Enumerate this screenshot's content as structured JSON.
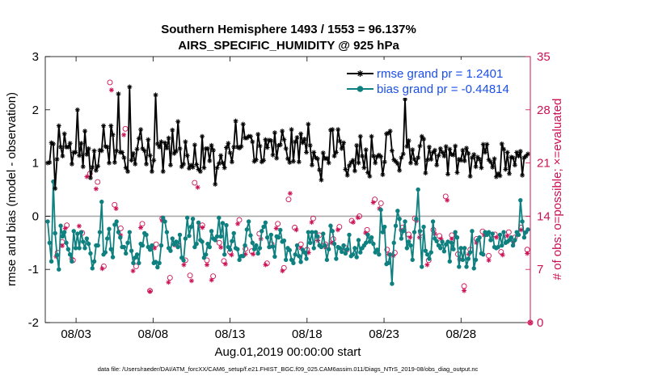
{
  "chart_data": {
    "type": "line",
    "title_line1": "Southern Hemisphere 1493 / 1553 = 96.137%",
    "title_line2": "AIRS_SPECIFIC_HUMIDITY @ 925 hPa",
    "xlabel": "Aug.01,2019 00:00:00 start",
    "ylabel_left": "rmse and bias (model - observation)",
    "ylabel_right": "# of obs: o=possible; ×=evaluated",
    "footnote": "data file: /Users/raeder/DAI/ATM_forcXX/CAM6_setup/f.e21.FHIST_BGC.f09_025.CAM6assim.011/Diags_NTrS_2019-08/obs_diag_output.nc",
    "x_range_days": [
      1.0,
      32.5
    ],
    "x_ticks": [
      {
        "day": 3,
        "label": "08/03"
      },
      {
        "day": 8,
        "label": "08/08"
      },
      {
        "day": 13,
        "label": "08/13"
      },
      {
        "day": 18,
        "label": "08/18"
      },
      {
        "day": 23,
        "label": "08/23"
      },
      {
        "day": 28,
        "label": "08/28"
      }
    ],
    "ylim_left": [
      -2,
      3
    ],
    "yticks_left": [
      "3",
      "2",
      "1",
      "0",
      "-1",
      "-2"
    ],
    "ylim_right": [
      0,
      35
    ],
    "yticks_right": [
      "35",
      "28",
      "21",
      "14",
      "7",
      "0"
    ],
    "colors": {
      "rmse": "#000000",
      "bias": "#0f8080",
      "obs": "#cc1155",
      "right_axis": "#cc1155",
      "legend_text": "#1b4fe8",
      "zero_line": "#aaaaaa"
    },
    "series": [
      {
        "name": "rmse",
        "legend": "rmse grand pr = 1.2401",
        "values": [
          1.0,
          1.01,
          1.38,
          1.36,
          0.52,
          1.07,
          1.7,
          1.3,
          1.13,
          1.55,
          1.3,
          1.3,
          1.37,
          0.98,
          1.2,
          1.2,
          2.0,
          1.14,
          1.37,
          0.93,
          1.6,
          1.16,
          1.27,
          0.72,
          0.92,
          1.23,
          0.86,
          0.94,
          1.24,
          1.23,
          1.7,
          1.31,
          1.3,
          1.0,
          1.7,
          1.53,
          1.01,
          1.23,
          2.3,
          1.2,
          1.2,
          1.1,
          0.91,
          0.84,
          2.43,
          1.05,
          1.18,
          0.98,
          1.26,
          1.46,
          1.63,
          1.27,
          1.23,
          0.98,
          1.44,
          1.14,
          0.84,
          1.05,
          2.28,
          1.36,
          1.3,
          1.4,
          0.84,
          1.38,
          1.28,
          1.47,
          0.96,
          1.62,
          1.18,
          1.22,
          1.78,
          1.27,
          0.93,
          0.98,
          1.4,
          1.14,
          0.9,
          0.96,
          0.92,
          1.34,
          0.97,
          0.88,
          0.84,
          1.5,
          0.91,
          1.27,
          1.27,
          1.04,
          1.33,
          1.24,
          0.6,
          0.91,
          0.99,
          1.14,
          1.0,
          0.91,
          1.29,
          1.37,
          1.19,
          1.02,
          1.3,
          1.79,
          1.3,
          1.28,
          1.31,
          1.73,
          1.47,
          1.47,
          1.5,
          1.5,
          1.4,
          1.03,
          1.06,
          1.54,
          1.32,
          1.02,
          1.05,
          1.44,
          1.29,
          1.43,
          1.42,
          1.15,
          1.57,
          1.09,
          1.33,
          1.34,
          1.6,
          1.44,
          1.27,
          1.08,
          1.01,
          1.63,
          1.03,
          1.4,
          1.48,
          1.02,
          1.55,
          1.38,
          1.45,
          1.2,
          1.73,
          1.33,
          0.96,
          1.2,
          1.1,
          1.08,
          0.87,
          0.68,
          1.19,
          1.08,
          1.09,
          1.0,
          1.62,
          1.63,
          1.13,
          1.2,
          1.63,
          1.41,
          1.27,
          1.38,
          0.88,
          0.77,
          0.95,
          1.01,
          1.05,
          0.85,
          1.33,
          1.0,
          1.5,
          1.13,
          0.91,
          1.25,
          0.82,
          0.75,
          1.5,
          1.13,
          1.0,
          1.12,
          1.15,
          1.12,
          0.78,
          1.02,
          1.55,
          1.56,
          1.6,
          1.23,
          1.06,
          1.03,
          0.99,
          0.86,
          1.1,
          1.17,
          2.2,
          1.31,
          1.42,
          1.0,
          1.25,
          1.07,
          0.99,
          1.1,
          1.32,
          1.5,
          1.45,
          0.81,
          1.06,
          1.3,
          1.07,
          1.2,
          1.24,
          0.96,
          1.14,
          1.27,
          1.2,
          1.13,
          1.31,
          0.79,
          1.26,
          1.16,
          1.15,
          1.32,
          0.82,
          1.07,
          1.05,
          1.24,
          1.04,
          1.28,
          1.18,
          0.75,
          1.1,
          1.16,
          0.93,
          1.11,
          1.07,
          0.91,
          1.35,
          1.2,
          1.35,
          1.06,
          1.02,
          0.92,
          1.08,
          0.74,
          0.8,
          0.76,
          1.36,
          1.26,
          0.88,
          1.2,
          0.8,
          1.11,
          1.1,
          0.96,
          1.2,
          1.13,
          1.22,
          0.77,
          1.1,
          1.13,
          1.17
        ]
      },
      {
        "name": "bias",
        "legend": "bias grand pr = -0.44814",
        "values": [
          -0.1,
          -0.5,
          -0.85,
          0.65,
          -0.32,
          -0.73,
          -1.0,
          -0.18,
          -0.38,
          -0.3,
          -0.5,
          -0.62,
          -0.72,
          -0.85,
          -0.28,
          -0.6,
          -0.33,
          -0.6,
          -0.3,
          -0.48,
          -0.6,
          -0.42,
          -0.52,
          -0.7,
          -0.98,
          -0.85,
          -0.55,
          -0.55,
          -0.3,
          0.27,
          -0.72,
          -0.68,
          -0.42,
          -0.24,
          -0.62,
          -0.77,
          -0.16,
          -0.1,
          -0.3,
          -0.4,
          -0.58,
          -0.58,
          -0.7,
          -0.5,
          -0.3,
          -0.65,
          -0.88,
          -0.78,
          -0.72,
          -0.88,
          -0.52,
          -0.55,
          -0.32,
          -0.35,
          -0.58,
          -0.63,
          -0.55,
          -0.88,
          -0.86,
          -0.96,
          -0.88,
          -0.55,
          -0.03,
          -0.1,
          -0.3,
          -0.6,
          -0.65,
          -0.42,
          -0.53,
          -0.48,
          -0.58,
          -0.35,
          -0.78,
          -0.83,
          -0.42,
          -0.03,
          -0.37,
          -0.2,
          -0.05,
          -0.58,
          -0.52,
          -0.12,
          -0.45,
          -0.48,
          -0.78,
          -0.72,
          -0.52,
          -0.58,
          -0.28,
          -0.42,
          -0.45,
          -0.38,
          -0.03,
          -0.38,
          -0.13,
          -0.72,
          -0.17,
          -0.58,
          -0.63,
          -0.47,
          -0.32,
          -0.6,
          -0.62,
          -0.82,
          -0.75,
          -0.75,
          -0.55,
          -0.25,
          -0.1,
          -0.36,
          -0.5,
          -0.62,
          -0.55,
          -0.7,
          -0.6,
          -0.28,
          -0.2,
          -0.12,
          -0.4,
          -0.58,
          -0.35,
          -0.57,
          -0.76,
          -0.38,
          -0.4,
          -0.26,
          -0.48,
          -0.46,
          -0.82,
          -0.6,
          -0.64,
          -0.82,
          -0.88,
          -0.72,
          -0.55,
          -0.75,
          -0.86,
          -0.63,
          -0.68,
          -0.8,
          -0.3,
          -0.5,
          -0.3,
          -0.6,
          -0.3,
          -0.38,
          -0.55,
          -0.58,
          -0.33,
          -0.55,
          -0.82,
          -0.62,
          -0.18,
          -0.28,
          -0.52,
          -0.8,
          -0.58,
          -0.6,
          -0.67,
          -0.55,
          -0.7,
          -0.62,
          -0.35,
          -0.75,
          -0.72,
          -0.6,
          -0.77,
          -0.45,
          -0.68,
          -0.6,
          -0.55,
          -0.5,
          -0.35,
          -0.48,
          -0.4,
          -0.52,
          -0.68,
          -0.63,
          -0.72,
          0.12,
          -0.3,
          -0.2,
          -0.9,
          -0.88,
          -0.72,
          -1.27,
          -0.5,
          -0.18,
          0.1,
          -0.05,
          -0.42,
          -0.28,
          -0.1,
          -0.6,
          -0.48,
          -0.55,
          -0.82,
          -0.3,
          -0.05,
          0.5,
          -0.28,
          -0.95,
          -0.2,
          -0.65,
          -0.72,
          -0.8,
          -0.68,
          -0.1,
          -0.42,
          -0.47,
          -0.55,
          -0.6,
          -0.48,
          -0.66,
          -0.53,
          -0.48,
          -0.85,
          -0.5,
          -0.62,
          -0.3,
          -0.4,
          -0.95,
          -0.6,
          -0.82,
          -0.6,
          -0.95,
          -0.8,
          -0.68,
          -0.28,
          -0.98,
          -0.82,
          -0.45,
          -0.4,
          -0.7,
          -0.72,
          -0.3,
          -0.35,
          -0.3,
          -0.45,
          -0.33,
          -0.58,
          -0.6,
          -0.58,
          -0.35,
          -0.55,
          -0.3,
          -0.5,
          -0.48,
          -0.45,
          -0.4,
          -0.55,
          -0.45,
          -0.3,
          -0.35,
          0.3,
          -0.1,
          -0.4,
          -0.3,
          -0.25
        ]
      }
    ],
    "obs_possible": [
      [
        1.8,
        9.2
      ],
      [
        2.1,
        10.6
      ],
      [
        2.4,
        12.8
      ],
      [
        2.8,
        8.2
      ],
      [
        3.4,
        11.8
      ],
      [
        3.9,
        19.6
      ],
      [
        4.4,
        18.5
      ],
      [
        4.8,
        7.4
      ],
      [
        5.2,
        31.6
      ],
      [
        5.5,
        15.5
      ],
      [
        5.9,
        12.4
      ],
      [
        6.2,
        25.5
      ],
      [
        6.9,
        7.4
      ],
      [
        7.3,
        13.0
      ],
      [
        7.8,
        4.2
      ],
      [
        8.2,
        10.3
      ],
      [
        8.6,
        13.7
      ],
      [
        9.1,
        5.9
      ],
      [
        9.6,
        10.2
      ],
      [
        10.1,
        8.2
      ],
      [
        10.4,
        6.2
      ],
      [
        10.7,
        18.4
      ],
      [
        11.2,
        12.8
      ],
      [
        11.5,
        8.2
      ],
      [
        11.9,
        6.1
      ],
      [
        12.3,
        10.5
      ],
      [
        12.6,
        8.1
      ],
      [
        13.0,
        9.3
      ],
      [
        13.6,
        13.5
      ],
      [
        14.0,
        9.7
      ],
      [
        14.4,
        9.4
      ],
      [
        14.9,
        11.7
      ],
      [
        15.4,
        7.8
      ],
      [
        15.7,
        10.3
      ],
      [
        16.1,
        13.0
      ],
      [
        16.5,
        7.2
      ],
      [
        16.8,
        16.2
      ],
      [
        17.2,
        12.5
      ],
      [
        17.6,
        10.3
      ],
      [
        18.0,
        9.6
      ],
      [
        18.4,
        13.7
      ],
      [
        18.8,
        11.5
      ],
      [
        19.2,
        10.3
      ],
      [
        19.7,
        11.0
      ],
      [
        20.1,
        12.6
      ],
      [
        20.5,
        9.8
      ],
      [
        20.9,
        13.4
      ],
      [
        21.4,
        14.0
      ],
      [
        21.9,
        12.2
      ],
      [
        22.4,
        16.2
      ],
      [
        22.8,
        15.7
      ],
      [
        23.2,
        9.6
      ],
      [
        23.7,
        9.2
      ],
      [
        24.2,
        12.5
      ],
      [
        24.6,
        11.6
      ],
      [
        25.0,
        13.7
      ],
      [
        25.4,
        11.8
      ],
      [
        25.9,
        8.2
      ],
      [
        26.2,
        12.2
      ],
      [
        26.6,
        11.4
      ],
      [
        27.0,
        16.6
      ],
      [
        27.4,
        11.5
      ],
      [
        27.8,
        9.0
      ],
      [
        28.2,
        4.8
      ],
      [
        28.6,
        9.6
      ],
      [
        29.0,
        11.0
      ],
      [
        29.4,
        12.0
      ],
      [
        29.8,
        8.8
      ],
      [
        30.2,
        11.6
      ],
      [
        30.6,
        9.3
      ],
      [
        31.1,
        11.9
      ],
      [
        31.5,
        11.2
      ],
      [
        31.9,
        12.5
      ],
      [
        32.3,
        9.6
      ]
    ],
    "obs_evaluated": [
      [
        1.7,
        8.7
      ],
      [
        2.1,
        10.1
      ],
      [
        2.3,
        12.4
      ],
      [
        2.7,
        8.4
      ],
      [
        3.2,
        12.7
      ],
      [
        3.7,
        19.2
      ],
      [
        4.3,
        17.6
      ],
      [
        4.7,
        7.1
      ],
      [
        5.3,
        30.6
      ],
      [
        5.6,
        15.0
      ],
      [
        5.9,
        11.5
      ],
      [
        6.1,
        24.7
      ],
      [
        6.7,
        6.8
      ],
      [
        7.2,
        12.5
      ],
      [
        7.8,
        4.1
      ],
      [
        8.1,
        9.8
      ],
      [
        8.6,
        13.4
      ],
      [
        9.0,
        5.3
      ],
      [
        9.4,
        10.2
      ],
      [
        10.0,
        7.6
      ],
      [
        10.5,
        5.5
      ],
      [
        10.9,
        17.8
      ],
      [
        11.2,
        12.5
      ],
      [
        11.5,
        7.6
      ],
      [
        11.8,
        5.6
      ],
      [
        12.4,
        9.9
      ],
      [
        12.7,
        7.7
      ],
      [
        13.1,
        8.9
      ],
      [
        13.5,
        13.0
      ],
      [
        14.0,
        9.0
      ],
      [
        14.5,
        9.0
      ],
      [
        15.0,
        11.0
      ],
      [
        15.3,
        7.6
      ],
      [
        15.6,
        10.0
      ],
      [
        16.0,
        12.4
      ],
      [
        16.4,
        6.8
      ],
      [
        16.9,
        17.0
      ],
      [
        17.3,
        12.2
      ],
      [
        17.6,
        9.8
      ],
      [
        18.1,
        9.2
      ],
      [
        18.3,
        13.2
      ],
      [
        18.7,
        10.8
      ],
      [
        19.2,
        9.9
      ],
      [
        19.6,
        10.5
      ],
      [
        20.0,
        12.2
      ],
      [
        20.6,
        9.5
      ],
      [
        21.0,
        13.2
      ],
      [
        21.3,
        13.8
      ],
      [
        21.8,
        11.8
      ],
      [
        22.3,
        15.8
      ],
      [
        22.7,
        15.0
      ],
      [
        23.3,
        9.0
      ],
      [
        23.6,
        8.8
      ],
      [
        24.1,
        12.2
      ],
      [
        24.7,
        11.2
      ],
      [
        25.1,
        13.4
      ],
      [
        25.3,
        11.2
      ],
      [
        25.8,
        7.6
      ],
      [
        26.3,
        11.7
      ],
      [
        26.7,
        11.0
      ],
      [
        27.1,
        16.1
      ],
      [
        27.4,
        11.0
      ],
      [
        27.9,
        8.3
      ],
      [
        28.2,
        4.2
      ],
      [
        28.5,
        9.0
      ],
      [
        29.0,
        10.5
      ],
      [
        29.5,
        11.5
      ],
      [
        29.8,
        8.2
      ],
      [
        30.3,
        11.2
      ],
      [
        30.7,
        8.9
      ],
      [
        31.0,
        11.4
      ],
      [
        31.4,
        10.6
      ],
      [
        31.9,
        12.2
      ],
      [
        32.3,
        9.1
      ]
    ],
    "obs_edge": [
      [
        32.5,
        0.0
      ]
    ]
  }
}
